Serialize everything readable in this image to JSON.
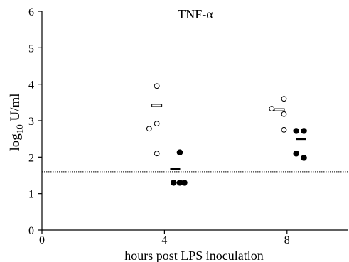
{
  "chart_data": {
    "type": "scatter",
    "title": "TNF-α",
    "xlabel": "hours post LPS inoculation",
    "ylabel": {
      "prefix": "log",
      "subscript": "10",
      "suffix": " U/ml"
    },
    "xlim": [
      0,
      10
    ],
    "ylim": [
      0,
      6
    ],
    "x_ticks": [
      0,
      4,
      8
    ],
    "y_ticks": [
      0,
      1,
      2,
      3,
      4,
      5,
      6
    ],
    "grid": false,
    "reference_line": {
      "y": 1.6,
      "style": "dotted"
    },
    "series": [
      {
        "marker": "open-circle",
        "points": [
          {
            "x": 3.5,
            "y": 2.78
          },
          {
            "x": 3.75,
            "y": 3.95
          },
          {
            "x": 3.75,
            "y": 2.92
          },
          {
            "x": 3.75,
            "y": 2.1
          },
          {
            "x": 7.5,
            "y": 3.33
          },
          {
            "x": 7.9,
            "y": 3.6
          },
          {
            "x": 7.9,
            "y": 3.18
          },
          {
            "x": 7.9,
            "y": 2.75
          }
        ],
        "means": [
          {
            "x": 3.75,
            "y": 3.42
          },
          {
            "x": 7.75,
            "y": 3.3
          }
        ]
      },
      {
        "marker": "filled-circle",
        "points": [
          {
            "x": 4.3,
            "y": 1.3
          },
          {
            "x": 4.5,
            "y": 1.3
          },
          {
            "x": 4.65,
            "y": 1.3
          },
          {
            "x": 4.5,
            "y": 2.13
          },
          {
            "x": 8.3,
            "y": 2.72
          },
          {
            "x": 8.55,
            "y": 2.72
          },
          {
            "x": 8.3,
            "y": 2.1
          },
          {
            "x": 8.55,
            "y": 1.98
          }
        ],
        "means": [
          {
            "x": 4.35,
            "y": 1.68
          },
          {
            "x": 8.45,
            "y": 2.5
          }
        ]
      }
    ]
  }
}
